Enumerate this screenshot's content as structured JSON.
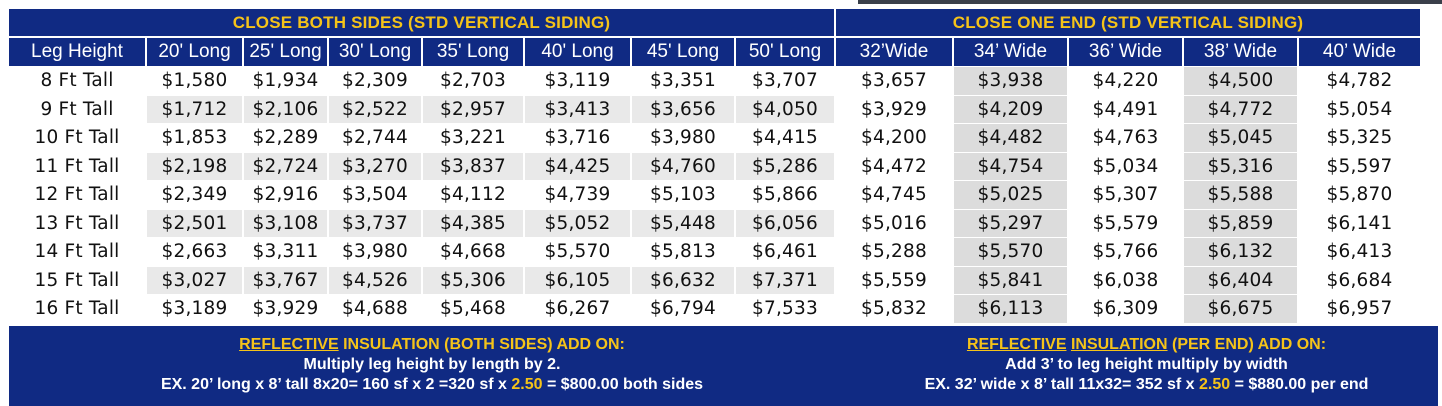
{
  "banners": {
    "left": "CLOSE BOTH SIDES (STD VERTICAL SIDING)",
    "right": "CLOSE ONE END (STD VERTICAL SIDING)"
  },
  "headers": [
    "Leg Height",
    "20' Long",
    "25' Long",
    "30' Long",
    "35' Long",
    "40' Long",
    "45' Long",
    "50' Long",
    "32’Wide",
    "34’ Wide",
    "36’ Wide",
    "38’ Wide",
    "40’ Wide"
  ],
  "rows": [
    [
      "8 Ft Tall",
      "$1,580",
      "$1,934",
      "$2,309",
      "$2,703",
      "$3,119",
      "$3,351",
      "$3,707",
      "$3,657",
      "$3,938",
      "$4,220",
      "$4,500",
      "$4,782"
    ],
    [
      "9 Ft Tall",
      "$1,712",
      "$2,106",
      "$2,522",
      "$2,957",
      "$3,413",
      "$3,656",
      "$4,050",
      "$3,929",
      "$4,209",
      "$4,491",
      "$4,772",
      "$5,054"
    ],
    [
      "10 Ft Tall",
      "$1,853",
      "$2,289",
      "$2,744",
      "$3,221",
      "$3,716",
      "$3,980",
      "$4,415",
      "$4,200",
      "$4,482",
      "$4,763",
      "$5,045",
      "$5,325"
    ],
    [
      "11 Ft Tall",
      "$2,198",
      "$2,724",
      "$3,270",
      "$3,837",
      "$4,425",
      "$4,760",
      "$5,286",
      "$4,472",
      "$4,754",
      "$5,034",
      "$5,316",
      "$5,597"
    ],
    [
      "12 Ft Tall",
      "$2,349",
      "$2,916",
      "$3,504",
      "$4,112",
      "$4,739",
      "$5,103",
      "$5,866",
      "$4,745",
      "$5,025",
      "$5,307",
      "$5,588",
      "$5,870"
    ],
    [
      "13 Ft Tall",
      "$2,501",
      "$3,108",
      "$3,737",
      "$4,385",
      "$5,052",
      "$5,448",
      "$6,056",
      "$5,016",
      "$5,297",
      "$5,579",
      "$5,859",
      "$6,141"
    ],
    [
      "14 Ft Tall",
      "$2,663",
      "$3,311",
      "$3,980",
      "$4,668",
      "$5,570",
      "$5,813",
      "$6,461",
      "$5,288",
      "$5,570",
      "$5,766",
      "$6,132",
      "$6,413"
    ],
    [
      "15 Ft Tall",
      "$3,027",
      "$3,767",
      "$4,526",
      "$5,306",
      "$6,105",
      "$6,632",
      "$7,371",
      "$5,559",
      "$5,841",
      "$6,038",
      "$6,404",
      "$6,684"
    ],
    [
      "16 Ft Tall",
      "$3,189",
      "$3,929",
      "$4,688",
      "$5,468",
      "$6,267",
      "$6,794",
      "$7,533",
      "$5,832",
      "$6,113",
      "$6,309",
      "$6,675",
      "$6,957"
    ]
  ],
  "footer": {
    "left": {
      "title_underlined": "REFLECTIVE",
      "title_mid": " ",
      "title_underlined2": "INSULATION",
      "title_rest": " (BOTH SIDES) ADD ON:",
      "line1": "Multiply leg height by length by 2.",
      "line2_pre": "EX. 20’ long x 8’ tall 8x20= 160 sf x 2 =320 sf x ",
      "line2_rate": "2.50",
      "line2_post": " = $800.00 both sides"
    },
    "right": {
      "title_underlined": "REFLECTIVE",
      "title_mid": " ",
      "title_underlined2": "INSULATION",
      "title_rest": " (PER END) ADD ON:",
      "line1": "Add 3’ to leg height multiply by width",
      "line2_pre": "EX. 32’ wide x 8’ tall 11x32= 352 sf x ",
      "line2_rate": "2.50",
      "line2_post": " = $880.00 per end"
    }
  },
  "colors": {
    "navy": "#102a83",
    "gold": "#f5c319",
    "shade": "#dcdcdc"
  }
}
